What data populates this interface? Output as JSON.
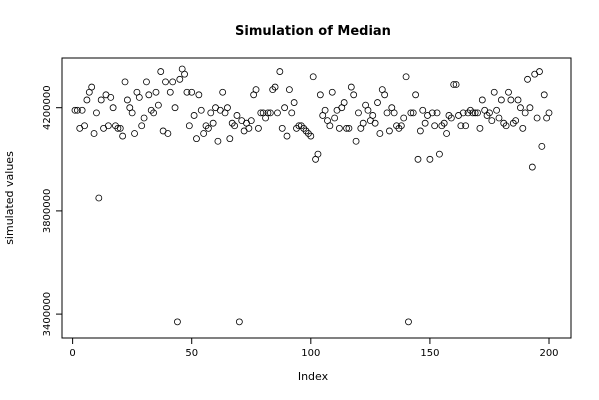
{
  "chart_data": {
    "type": "scatter",
    "title": "Simulation of Median",
    "xlabel": "Index",
    "ylabel": "simulated values",
    "xlim": [
      1,
      200
    ],
    "ylim": [
      3350000,
      4350000
    ],
    "xticks": [
      0,
      50,
      100,
      150,
      200
    ],
    "xtick_labels": [
      "0",
      "50",
      "100",
      "150",
      "200"
    ],
    "yticks": [
      3400000,
      3800000,
      4200000
    ],
    "ytick_labels": [
      "3400000",
      "3800000",
      "4200000"
    ],
    "grid": false,
    "legend": "none",
    "marker": "open-circle",
    "series": [
      {
        "values": [
          4190000,
          4190000,
          4120000,
          4190000,
          4130000,
          4230000,
          4260000,
          4280000,
          4100000,
          4180000,
          3850000,
          4230000,
          4120000,
          4250000,
          4130000,
          4240000,
          4200000,
          4130000,
          4120000,
          4120000,
          4090000,
          4300000,
          4230000,
          4200000,
          4180000,
          4100000,
          4260000,
          4240000,
          4130000,
          4160000,
          4300000,
          4250000,
          4190000,
          4180000,
          4260000,
          4210000,
          4340000,
          4110000,
          4300000,
          4100000,
          4260000,
          4300000,
          4200000,
          3370000,
          4310000,
          4350000,
          4330000,
          4260000,
          4130000,
          4260000,
          4170000,
          4080000,
          4250000,
          4190000,
          4100000,
          4130000,
          4120000,
          4180000,
          4140000,
          4200000,
          4070000,
          4190000,
          4260000,
          4180000,
          4200000,
          4080000,
          4140000,
          4130000,
          4170000,
          3370000,
          4150000,
          4110000,
          4140000,
          4120000,
          4150000,
          4250000,
          4270000,
          4120000,
          4180000,
          4180000,
          4160000,
          4180000,
          4180000,
          4270000,
          4280000,
          4180000,
          4340000,
          4120000,
          4200000,
          4090000,
          4270000,
          4180000,
          4220000,
          4120000,
          4130000,
          4130000,
          4120000,
          4110000,
          4100000,
          4090000,
          4320000,
          4000000,
          4020000,
          4250000,
          4170000,
          4190000,
          4150000,
          4130000,
          4260000,
          4160000,
          4190000,
          4120000,
          4200000,
          4220000,
          4120000,
          4120000,
          4280000,
          4250000,
          4070000,
          4180000,
          4120000,
          4140000,
          4210000,
          4190000,
          4150000,
          4170000,
          4140000,
          4220000,
          4100000,
          4270000,
          4250000,
          4180000,
          4110000,
          4200000,
          4180000,
          4130000,
          4120000,
          4130000,
          4160000,
          4320000,
          3370000,
          4180000,
          4180000,
          4250000,
          4000000,
          4110000,
          4190000,
          4140000,
          4170000,
          4000000,
          4180000,
          4130000,
          4180000,
          4020000,
          4130000,
          4140000,
          4100000,
          4170000,
          4160000,
          4290000,
          4290000,
          4170000,
          4130000,
          4180000,
          4130000,
          4180000,
          4190000,
          4180000,
          4180000,
          4180000,
          4120000,
          4230000,
          4190000,
          4170000,
          4180000,
          4150000,
          4260000,
          4190000,
          4160000,
          4230000,
          4140000,
          4130000,
          4260000,
          4230000,
          4140000,
          4150000,
          4230000,
          4200000,
          4120000,
          4180000,
          4310000,
          4200000,
          3970000,
          4330000,
          4160000,
          4340000,
          4050000,
          4250000,
          4160000,
          4180000
        ]
      }
    ]
  }
}
